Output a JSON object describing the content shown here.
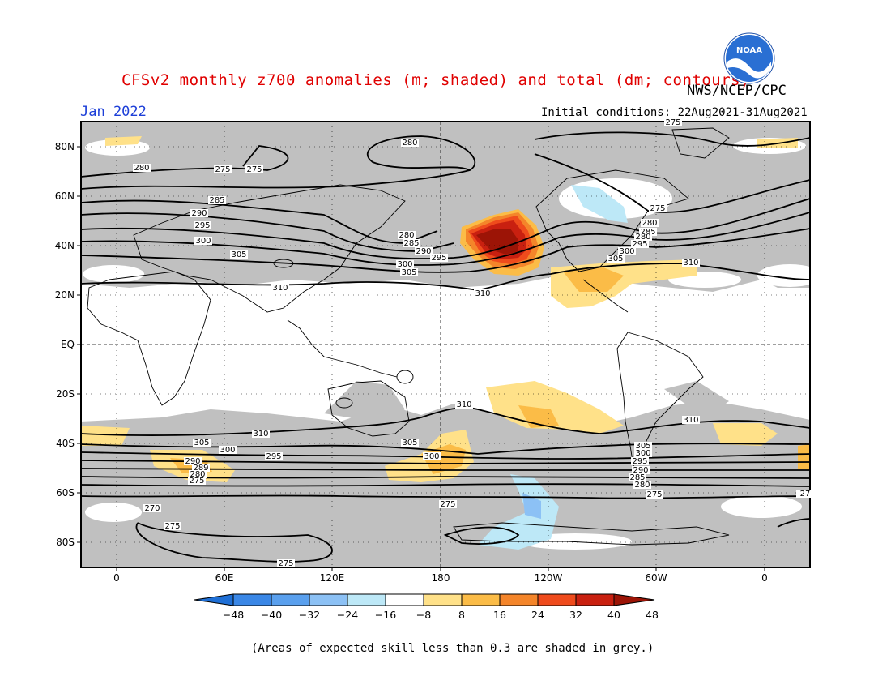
{
  "title": "CFSv2 monthly z700 anomalies (m; shaded) and total (dm; contours)",
  "agency": "NWS/NCEP/CPC",
  "month": "Jan 2022",
  "initial_conditions": "Initial conditions: 22Aug2021-31Aug2021",
  "logo_text": "NOAA",
  "footnote": "(Areas of expected skill less than 0.3 are shaded in grey.)",
  "lat_labels": [
    "80N",
    "60N",
    "40N",
    "20N",
    "EQ",
    "20S",
    "40S",
    "60S",
    "80S"
  ],
  "lon_labels": [
    "0",
    "60E",
    "120E",
    "180",
    "120W",
    "60W",
    "0"
  ],
  "colorbar": {
    "ticks": [
      "-48",
      "-40",
      "-32",
      "-24",
      "-16",
      "-8",
      "8",
      "16",
      "24",
      "32",
      "40",
      "48"
    ],
    "colors": [
      "#1e6fd6",
      "#3a87e6",
      "#5aa0ee",
      "#8cc1f5",
      "#bde8f7",
      "#ffffff",
      "#ffe189",
      "#fbbc47",
      "#f4852a",
      "#ef4b1c",
      "#c92010",
      "#9c1406"
    ]
  },
  "contour_labels": {
    "north": [
      "280",
      "275",
      "280",
      "275",
      "285",
      "290",
      "295",
      "300",
      "305",
      "310",
      "280",
      "285",
      "290",
      "295",
      "300",
      "305",
      "310",
      "280",
      "275",
      "285",
      "280",
      "295",
      "300",
      "305",
      "310",
      "275"
    ],
    "south": [
      "305",
      "300",
      "290",
      "289",
      "280",
      "275",
      "295",
      "310",
      "305",
      "300",
      "310",
      "305",
      "300",
      "295",
      "290",
      "285",
      "280",
      "275",
      "270",
      "275",
      "275",
      "275",
      "310",
      "27"
    ]
  }
}
